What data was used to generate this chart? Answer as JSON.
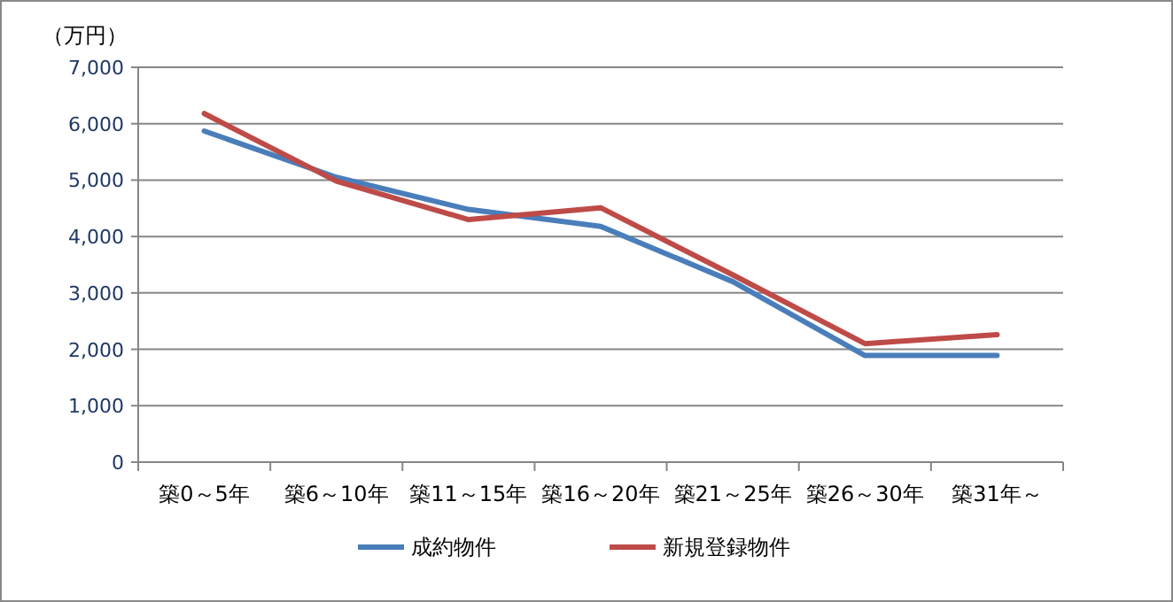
{
  "chart_data": {
    "type": "line",
    "ylabel": "（万円）",
    "categories": [
      "築0～5年",
      "築6～10年",
      "築11～15年",
      "築16～20年",
      "築21～25年",
      "築26～30年",
      "築31年～"
    ],
    "series": [
      {
        "name": "成約物件",
        "color": "#4a7ebb",
        "values": [
          5870,
          5050,
          4480,
          4180,
          3200,
          1890,
          1890
        ]
      },
      {
        "name": "新規登録物件",
        "color": "#be4b48",
        "values": [
          6180,
          4980,
          4300,
          4510,
          3320,
          2100,
          2260
        ]
      }
    ],
    "ylim": [
      0,
      7000
    ],
    "yticks": [
      {
        "value": 0,
        "label": "0"
      },
      {
        "value": 1000,
        "label": "1,000"
      },
      {
        "value": 2000,
        "label": "2,000"
      },
      {
        "value": 3000,
        "label": "3,000"
      },
      {
        "value": 4000,
        "label": "4,000"
      },
      {
        "value": 5000,
        "label": "5,000"
      },
      {
        "value": 6000,
        "label": "6,000"
      },
      {
        "value": 7000,
        "label": "7,000"
      }
    ],
    "grid": "y",
    "legend": "bottom",
    "marker": "none",
    "line_style": "solid"
  }
}
